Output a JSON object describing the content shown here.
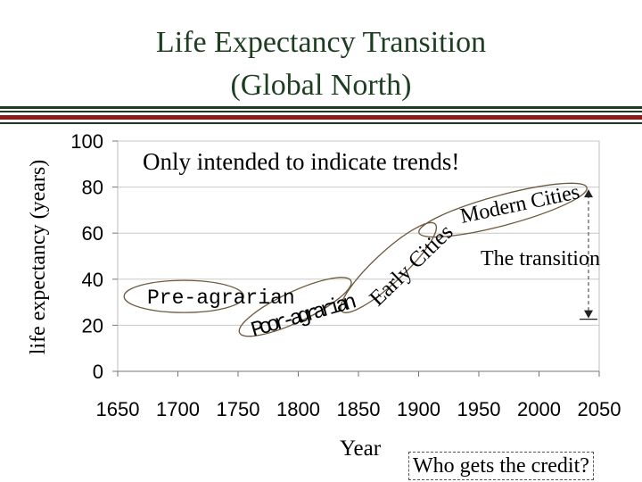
{
  "slide": {
    "title_line1": "Life Expectancy Transition",
    "title_line2": "(Global North)",
    "note": "Only intended to indicate trends!",
    "credit_question": "Who gets the credit?",
    "transition_label": "The transition",
    "colors": {
      "title": "#1c3d20",
      "rule_dark": "#1e3b22",
      "rule_red": "#8b1a1a",
      "ellipse_stroke": "#6e5a3e",
      "grid": "#c8c8c8"
    }
  },
  "chart_data": {
    "type": "line",
    "title": "",
    "xlabel": "Year",
    "ylabel": "life expectancy (years)",
    "xlim": [
      1650,
      2050
    ],
    "ylim": [
      0,
      100
    ],
    "x_ticks": [
      "1650",
      "1700",
      "1750",
      "1800",
      "1850",
      "1900",
      "1950",
      "2000",
      "2050"
    ],
    "y_ticks": [
      "0",
      "20",
      "40",
      "60",
      "80",
      "100"
    ],
    "grid": true,
    "annotations": [
      {
        "label": "Pre-agrarian",
        "x": [
          1660,
          1750
        ],
        "y": [
          30,
          35
        ]
      },
      {
        "label": "Poor-agrarian",
        "x": [
          1755,
          1840
        ],
        "y": [
          18,
          38
        ]
      },
      {
        "label": "Early Cities",
        "x": [
          1845,
          1905
        ],
        "y": [
          25,
          65
        ]
      },
      {
        "label": "Modern Cities",
        "x": [
          1905,
          2035
        ],
        "y": [
          60,
          80
        ]
      }
    ],
    "transition_range": [
      23,
      79
    ]
  }
}
